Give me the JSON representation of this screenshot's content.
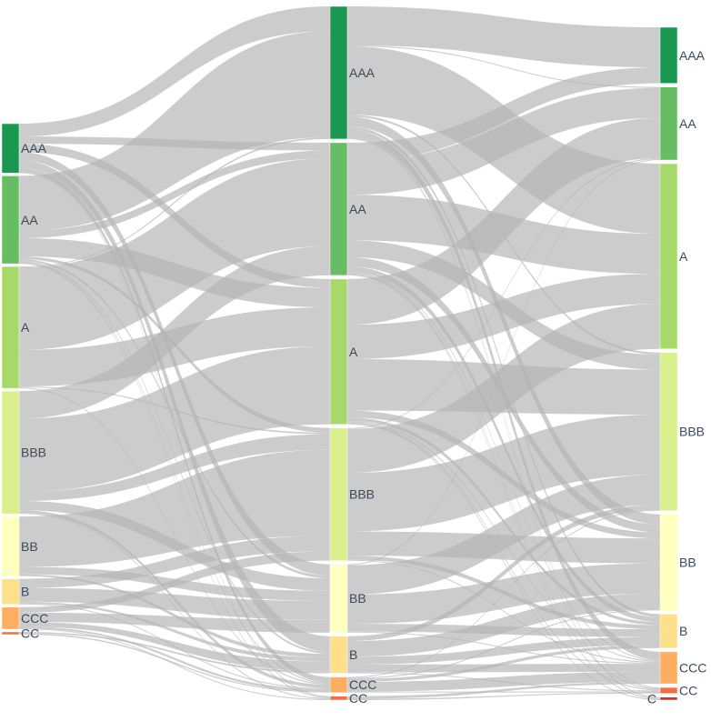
{
  "columns": [
    {
      "id": "col0",
      "nodes": [
        {
          "id": "c0_AAA",
          "label": "AAA",
          "color": "#1a9850"
        },
        {
          "id": "c0_AA",
          "label": "AA",
          "color": "#66bd63"
        },
        {
          "id": "c0_A",
          "label": "A",
          "color": "#a6d96a"
        },
        {
          "id": "c0_BBB",
          "label": "BBB",
          "color": "#d9ef8b"
        },
        {
          "id": "c0_BB",
          "label": "BB",
          "color": "#ffffbf"
        },
        {
          "id": "c0_B",
          "label": "B",
          "color": "#fee08b"
        },
        {
          "id": "c0_CCC",
          "label": "CCC",
          "color": "#fdae61"
        },
        {
          "id": "c0_CC",
          "label": "CC",
          "color": "#f46d43"
        }
      ]
    },
    {
      "id": "col1",
      "nodes": [
        {
          "id": "c1_AAA",
          "label": "AAA",
          "color": "#1a9850"
        },
        {
          "id": "c1_AA",
          "label": "AA",
          "color": "#66bd63"
        },
        {
          "id": "c1_A",
          "label": "A",
          "color": "#a6d96a"
        },
        {
          "id": "c1_BBB",
          "label": "BBB",
          "color": "#d9ef8b"
        },
        {
          "id": "c1_BB",
          "label": "BB",
          "color": "#ffffbf"
        },
        {
          "id": "c1_B",
          "label": "B",
          "color": "#fee08b"
        },
        {
          "id": "c1_CCC",
          "label": "CCC",
          "color": "#fdae61"
        },
        {
          "id": "c1_CC",
          "label": "CC",
          "color": "#f46d43"
        }
      ]
    },
    {
      "id": "col2",
      "nodes": [
        {
          "id": "c2_AAA",
          "label": "AAA",
          "color": "#1a9850"
        },
        {
          "id": "c2_AA",
          "label": "AA",
          "color": "#66bd63"
        },
        {
          "id": "c2_A",
          "label": "A",
          "color": "#a6d96a"
        },
        {
          "id": "c2_BBB",
          "label": "BBB",
          "color": "#d9ef8b"
        },
        {
          "id": "c2_BB",
          "label": "BB",
          "color": "#ffffbf"
        },
        {
          "id": "c2_B",
          "label": "B",
          "color": "#fee08b"
        },
        {
          "id": "c2_CCC",
          "label": "CCC",
          "color": "#fdae61"
        },
        {
          "id": "c2_CC",
          "label": "CC",
          "color": "#f46d43"
        },
        {
          "id": "c2_C",
          "label": "C",
          "color": "#d73027"
        }
      ]
    }
  ],
  "links": [
    {
      "source": "c0_AAA",
      "target": "c1_AAA",
      "value": 14
    },
    {
      "source": "c0_AAA",
      "target": "c1_AA",
      "value": 8
    },
    {
      "source": "c0_AAA",
      "target": "c1_A",
      "value": 9
    },
    {
      "source": "c0_AAA",
      "target": "c1_BB",
      "value": 9
    },
    {
      "source": "c0_AAA",
      "target": "c1_B",
      "value": 8
    },
    {
      "source": "c0_AAA",
      "target": "c1_CCC",
      "value": 5
    },
    {
      "source": "c0_AAA",
      "target": "c1_CC",
      "value": 1
    },
    {
      "source": "c0_AA",
      "target": "c1_AAA",
      "value": 60
    },
    {
      "source": "c0_AA",
      "target": "c1_AA",
      "value": 8
    },
    {
      "source": "c0_AA",
      "target": "c1_A",
      "value": 20
    },
    {
      "source": "c0_AA",
      "target": "c1_BBB",
      "value": 3
    },
    {
      "source": "c0_AA",
      "target": "c1_BB",
      "value": 2
    },
    {
      "source": "c0_AA",
      "target": "c1_B",
      "value": 1
    },
    {
      "source": "c0_AA",
      "target": "c1_CCC",
      "value": 1
    },
    {
      "source": "c0_AA",
      "target": "c1_CC",
      "value": 1
    },
    {
      "source": "c0_A",
      "target": "c1_AAA",
      "value": 1
    },
    {
      "source": "c0_A",
      "target": "c1_AA",
      "value": 90
    },
    {
      "source": "c0_A",
      "target": "c1_A",
      "value": 40
    },
    {
      "source": "c0_A",
      "target": "c1_BBB",
      "value": 1
    },
    {
      "source": "c0_A",
      "target": "c1_CCC",
      "value": 1
    },
    {
      "source": "c0_BBB",
      "target": "c1_AA",
      "value": 30
    },
    {
      "source": "c0_BBB",
      "target": "c1_A",
      "value": 80
    },
    {
      "source": "c0_BBB",
      "target": "c1_BBB",
      "value": 10
    },
    {
      "source": "c0_BBB",
      "target": "c1_BB",
      "value": 10
    },
    {
      "source": "c0_BBB",
      "target": "c1_CCC",
      "value": 3
    },
    {
      "source": "c0_BBB",
      "target": "c1_CC",
      "value": 1
    },
    {
      "source": "c0_BB",
      "target": "c1_BBB",
      "value": 55
    },
    {
      "source": "c0_BB",
      "target": "c1_BB",
      "value": 8
    },
    {
      "source": "c0_BB",
      "target": "c1_B",
      "value": 2
    },
    {
      "source": "c0_B",
      "target": "c1_BBB",
      "value": 10
    },
    {
      "source": "c0_B",
      "target": "c1_BB",
      "value": 15
    },
    {
      "source": "c0_B",
      "target": "c1_B",
      "value": 2
    },
    {
      "source": "c0_B",
      "target": "c1_CCC",
      "value": 1
    },
    {
      "source": "c0_CCC",
      "target": "c1_BBB",
      "value": 6
    },
    {
      "source": "c0_CCC",
      "target": "c1_BB",
      "value": 10
    },
    {
      "source": "c0_CCC",
      "target": "c1_B",
      "value": 5
    },
    {
      "source": "c0_CCC",
      "target": "c1_CCC",
      "value": 2
    },
    {
      "source": "c0_CCC",
      "target": "c1_CC",
      "value": 1
    },
    {
      "source": "c0_CC",
      "target": "c1_B",
      "value": 1
    },
    {
      "source": "c0_CC",
      "target": "c1_CCC",
      "value": 1
    },
    {
      "source": "c1_AAA",
      "target": "c2_AAA",
      "value": 40
    },
    {
      "source": "c1_AAA",
      "target": "c2_AA",
      "value": 1
    },
    {
      "source": "c1_AAA",
      "target": "c2_A",
      "value": 70
    },
    {
      "source": "c1_AAA",
      "target": "c2_BBB",
      "value": 2
    },
    {
      "source": "c1_AAA",
      "target": "c2_BB",
      "value": 10
    },
    {
      "source": "c1_AAA",
      "target": "c2_B",
      "value": 3
    },
    {
      "source": "c1_AAA",
      "target": "c2_CCC",
      "value": 8
    },
    {
      "source": "c1_AAA",
      "target": "c2_CC",
      "value": 1
    },
    {
      "source": "c1_AAA",
      "target": "c2_C",
      "value": 1
    },
    {
      "source": "c1_AA",
      "target": "c2_AAA",
      "value": 16
    },
    {
      "source": "c1_AA",
      "target": "c2_AA",
      "value": 30
    },
    {
      "source": "c1_AA",
      "target": "c2_A",
      "value": 40
    },
    {
      "source": "c1_AA",
      "target": "c2_BBB",
      "value": 15
    },
    {
      "source": "c1_AA",
      "target": "c2_BB",
      "value": 8
    },
    {
      "source": "c1_AA",
      "target": "c2_B",
      "value": 5
    },
    {
      "source": "c1_AA",
      "target": "c2_CCC",
      "value": 1
    },
    {
      "source": "c1_AA",
      "target": "c2_CC",
      "value": 1
    },
    {
      "source": "c1_AA",
      "target": "c2_C",
      "value": 1
    },
    {
      "source": "c1_A",
      "target": "c2_AA",
      "value": 40
    },
    {
      "source": "c1_A",
      "target": "c2_A",
      "value": 30
    },
    {
      "source": "c1_A",
      "target": "c2_BBB",
      "value": 45
    },
    {
      "source": "c1_A",
      "target": "c2_BB",
      "value": 6
    },
    {
      "source": "c1_A",
      "target": "c2_B",
      "value": 3
    },
    {
      "source": "c1_A",
      "target": "c2_CCC",
      "value": 1
    },
    {
      "source": "c1_A",
      "target": "c2_CC",
      "value": 1
    },
    {
      "source": "c1_A",
      "target": "c2_C",
      "value": 1
    },
    {
      "source": "c1_BBB",
      "target": "c2_AA",
      "value": 1
    },
    {
      "source": "c1_BBB",
      "target": "c2_A",
      "value": 45
    },
    {
      "source": "c1_BBB",
      "target": "c2_BBB",
      "value": 60
    },
    {
      "source": "c1_BBB",
      "target": "c2_BB",
      "value": 25
    },
    {
      "source": "c1_BBB",
      "target": "c2_B",
      "value": 4
    },
    {
      "source": "c1_BBB",
      "target": "c2_CCC",
      "value": 1
    },
    {
      "source": "c1_BB",
      "target": "c2_AA",
      "value": 1
    },
    {
      "source": "c1_BB",
      "target": "c2_BBB",
      "value": 30
    },
    {
      "source": "c1_BB",
      "target": "c2_BB",
      "value": 30
    },
    {
      "source": "c1_BB",
      "target": "c2_B",
      "value": 8
    },
    {
      "source": "c1_BB",
      "target": "c2_CCC",
      "value": 1
    },
    {
      "source": "c1_B",
      "target": "c2_BBB",
      "value": 5
    },
    {
      "source": "c1_B",
      "target": "c2_BB",
      "value": 16
    },
    {
      "source": "c1_B",
      "target": "c2_B",
      "value": 8
    },
    {
      "source": "c1_B",
      "target": "c2_CCC",
      "value": 8
    },
    {
      "source": "c1_B",
      "target": "c2_CC",
      "value": 1
    },
    {
      "source": "c1_CCC",
      "target": "c2_BBB",
      "value": 1
    },
    {
      "source": "c1_CCC",
      "target": "c2_BB",
      "value": 1
    },
    {
      "source": "c1_CCC",
      "target": "c2_B",
      "value": 3
    },
    {
      "source": "c1_CCC",
      "target": "c2_CCC",
      "value": 10
    },
    {
      "source": "c1_CCC",
      "target": "c2_CC",
      "value": 1
    },
    {
      "source": "c1_CC",
      "target": "c2_CCC",
      "value": 2
    },
    {
      "source": "c1_CC",
      "target": "c2_CC",
      "value": 1
    }
  ]
}
